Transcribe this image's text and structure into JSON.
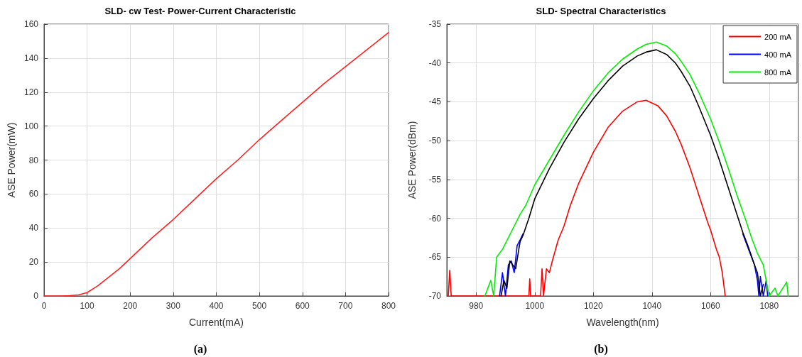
{
  "chart_data": [
    {
      "type": "line",
      "title": "SLD- cw Test- Power-Current Characteristic",
      "xlabel": "Current(mA)",
      "ylabel": "ASE Power(mW)",
      "annotations": [
        "(a)"
      ],
      "x": [
        0,
        20,
        40,
        60,
        80,
        100,
        125,
        150,
        175,
        200,
        250,
        300,
        350,
        400,
        450,
        500,
        550,
        600,
        650,
        700,
        750,
        800
      ],
      "series": [
        {
          "color": "#ff2020",
          "values": [
            0,
            0,
            0,
            0.2,
            0.6,
            2,
            6,
            11,
            16,
            22,
            34,
            45,
            57,
            69,
            80,
            92,
            103,
            114,
            125,
            135,
            145,
            155
          ]
        }
      ],
      "xlim": [
        0,
        800
      ],
      "ylim": [
        0,
        160
      ],
      "xticks": [
        0,
        100,
        200,
        300,
        400,
        500,
        600,
        700,
        800
      ],
      "yticks": [
        0,
        20,
        40,
        60,
        80,
        100,
        120,
        140,
        160
      ],
      "grid": true,
      "marker": "none",
      "line_style": "solid"
    },
    {
      "type": "line",
      "title": "SLD- Spectral Characteristics",
      "xlabel": "Wavelength(nm)",
      "ylabel": "ASE Power(dBm)",
      "annotations": [
        "(b)"
      ],
      "series": [
        {
          "name": "200 mA",
          "color": "#ff0000",
          "x": [
            970.5,
            971,
            971.5,
            998,
            998.3,
            998.6,
            1002,
            1002.5,
            1003,
            1004,
            1005,
            1006,
            1008,
            1010,
            1012,
            1015,
            1020,
            1025,
            1030,
            1035,
            1038,
            1042,
            1045,
            1048,
            1050,
            1053,
            1056,
            1059,
            1060,
            1062,
            1063,
            1064,
            1065
          ],
          "values": [
            -70,
            -66.7,
            -70,
            -70,
            -67.8,
            -70,
            -70,
            -66.5,
            -70,
            -66.5,
            -67,
            -65.5,
            -62.8,
            -61,
            -58.5,
            -55.5,
            -51.5,
            -48.3,
            -46.2,
            -45,
            -44.8,
            -45.5,
            -46.8,
            -48.8,
            -50.5,
            -53.5,
            -57,
            -60.5,
            -61.5,
            -64,
            -65,
            -67,
            -70
          ]
        },
        {
          "name": "400 mA",
          "color": "#0000ff",
          "x": [
            988,
            989,
            990,
            991,
            992,
            993,
            994,
            995,
            996,
            998,
            1000,
            1005,
            1010,
            1015,
            1020,
            1025,
            1030,
            1035,
            1038,
            1041.5,
            1045,
            1048,
            1050,
            1053,
            1056,
            1060,
            1063,
            1066,
            1069,
            1071,
            1073,
            1075,
            1076,
            1076.5,
            1077,
            1078,
            1079,
            1079.5
          ],
          "values": [
            -70,
            -67,
            -70,
            -66,
            -65.5,
            -67,
            -63.5,
            -62.8,
            -62,
            null,
            null,
            null,
            null,
            null,
            null,
            null,
            null,
            null,
            null,
            null,
            null,
            null,
            null,
            null,
            null,
            null,
            null,
            null,
            null,
            -62,
            -64,
            -66,
            -68,
            -70,
            -67.5,
            -70,
            -68,
            -70
          ]
        },
        {
          "name": "800 mA",
          "color": "#00ee00",
          "x": [
            983,
            985,
            986,
            987,
            989,
            991,
            993,
            995,
            997,
            1000,
            1005,
            1010,
            1015,
            1020,
            1025,
            1030,
            1035,
            1038,
            1041.5,
            1045,
            1048,
            1050,
            1053,
            1056,
            1060,
            1063,
            1066,
            1069,
            1072,
            1074,
            1076,
            1078,
            1079,
            1080,
            1082,
            1083,
            1086,
            1086.5
          ],
          "values": [
            -70,
            -68,
            -70,
            -65,
            -64,
            -62.5,
            -61,
            -59.5,
            -58.3,
            -55.7,
            -52.5,
            -49.3,
            -46.3,
            -43.6,
            -41.3,
            -39.5,
            -38.2,
            -37.6,
            -37.3,
            -37.8,
            -38.8,
            -39.8,
            -41.5,
            -43.8,
            -47.2,
            -50.2,
            -53.5,
            -57,
            -60.2,
            -62.5,
            -64.5,
            -66,
            -68,
            -70,
            -69,
            -70,
            -68.2,
            -70
          ]
        },
        {
          "color": "#000000",
          "x": [
            988.5,
            989.5,
            990.5,
            991.5,
            992.5,
            993.5,
            995,
            996,
            998,
            1000,
            1005,
            1010,
            1015,
            1020,
            1025,
            1030,
            1035,
            1038,
            1041.5,
            1045,
            1048,
            1050,
            1053,
            1056,
            1060,
            1063,
            1066,
            1069,
            1071,
            1073,
            1075,
            1076,
            1077,
            1078
          ],
          "values": [
            -70,
            -68,
            -69,
            -65.5,
            -66,
            -66.5,
            -63,
            -62.2,
            -60,
            -57.5,
            -53.6,
            -50.2,
            -47.2,
            -44.6,
            -42.3,
            -40.4,
            -39.1,
            -38.6,
            -38.3,
            -38.9,
            -40,
            -41.1,
            -43,
            -45.6,
            -49.3,
            -52.5,
            -56,
            -59.5,
            -61.8,
            -63.8,
            -66,
            -67,
            -70,
            -68.5
          ]
        }
      ],
      "xlim": [
        970,
        1090
      ],
      "ylim": [
        -70,
        -35
      ],
      "xticks": [
        980,
        1000,
        1020,
        1040,
        1060,
        1080
      ],
      "yticks": [
        -70,
        -65,
        -60,
        -55,
        -50,
        -45,
        -40,
        -35
      ],
      "grid": true,
      "legend": "top right",
      "marker": "none",
      "line_style": "solid"
    }
  ]
}
